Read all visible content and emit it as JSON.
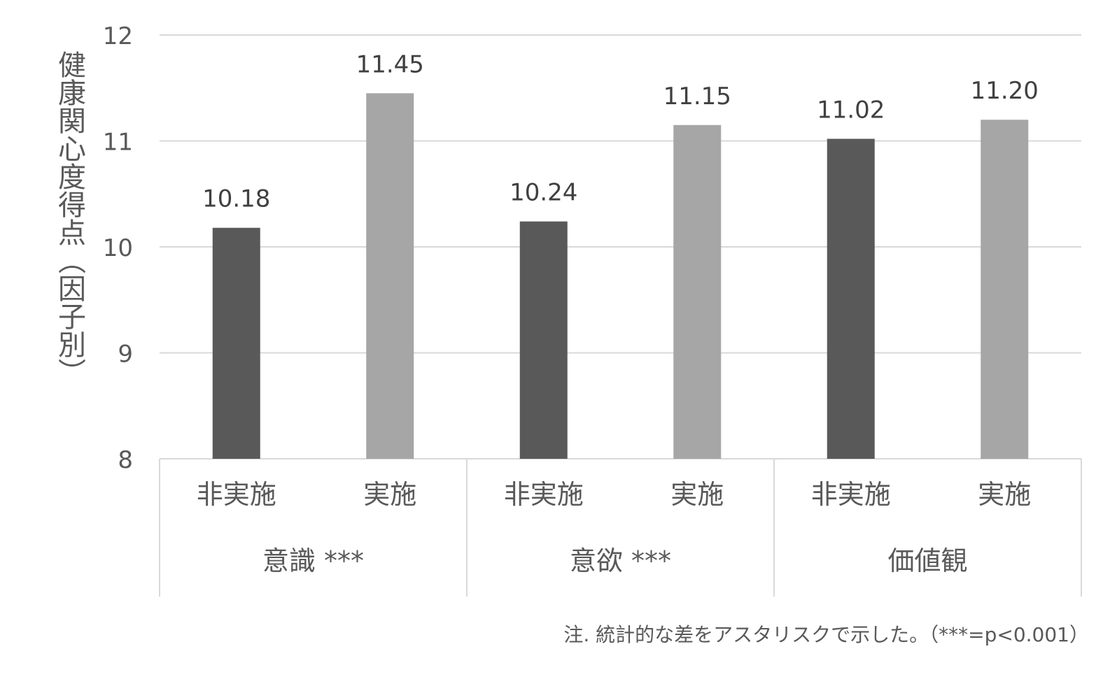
{
  "chart_data": {
    "type": "bar",
    "title": "",
    "ylabel": "健康関心度得点（因子別）",
    "xlabel": "",
    "ylim": [
      8,
      12
    ],
    "yticks": [
      "12",
      "11",
      "10",
      "9",
      "8"
    ],
    "ytick_values": [
      12,
      11,
      10,
      9,
      8
    ],
    "grid": true,
    "groups": [
      {
        "label": "意識 ***",
        "bars": [
          {
            "category": "非実施",
            "value": 10.18,
            "label": "10.18",
            "color": "#595959"
          },
          {
            "category": "実施",
            "value": 11.45,
            "label": "11.45",
            "color": "#a6a6a6"
          }
        ]
      },
      {
        "label": "意欲 ***",
        "bars": [
          {
            "category": "非実施",
            "value": 10.24,
            "label": "10.24",
            "color": "#595959"
          },
          {
            "category": "実施",
            "value": 11.15,
            "label": "11.15",
            "color": "#a6a6a6"
          }
        ]
      },
      {
        "label": "価値観",
        "bars": [
          {
            "category": "非実施",
            "value": 11.02,
            "label": "11.02",
            "color": "#595959"
          },
          {
            "category": "実施",
            "value": 11.2,
            "label": "11.20",
            "color": "#a6a6a6"
          }
        ]
      }
    ],
    "note": "注. 統計的な差をアスタリスクで示した。（***=p<0.001）"
  },
  "colors": {
    "non_implemented": "#595959",
    "implemented": "#a6a6a6",
    "gridline": "#d9d9d9",
    "text": "#595959"
  }
}
